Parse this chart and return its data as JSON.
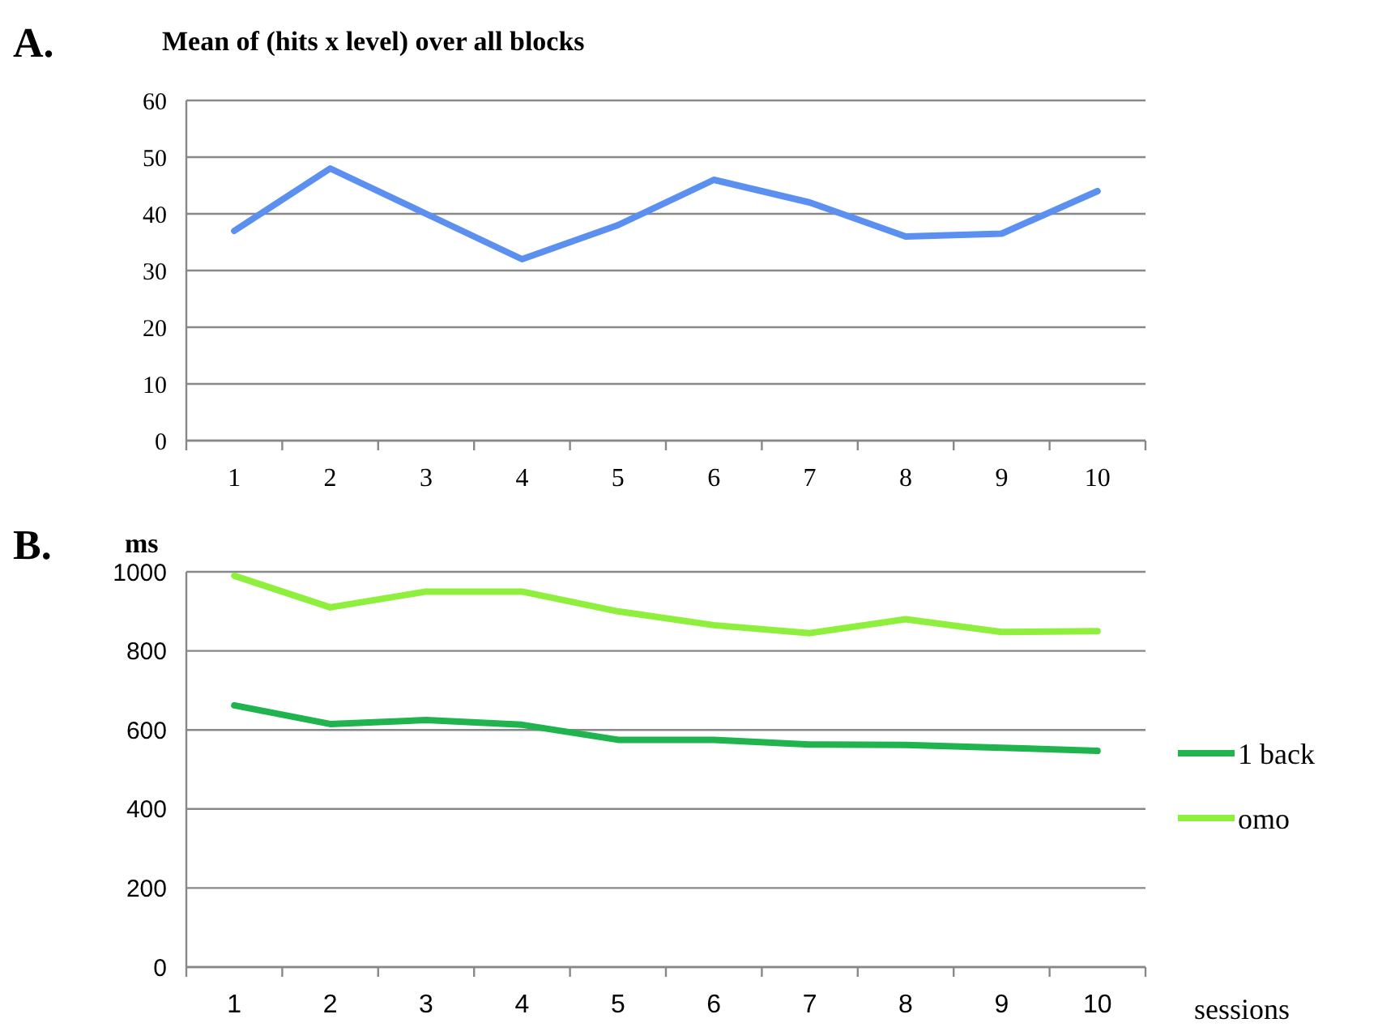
{
  "chart_data": [
    {
      "type": "line",
      "title": "Mean of (hits x level) over all blocks",
      "annotations": [
        "A."
      ],
      "categories": [
        "1",
        "2",
        "3",
        "4",
        "5",
        "6",
        "7",
        "8",
        "9",
        "10"
      ],
      "series": [
        {
          "color": "#5b8ff0",
          "values": [
            37,
            48,
            40,
            32,
            38,
            46,
            42,
            36,
            36.5,
            44
          ]
        }
      ],
      "ylim": [
        0,
        60
      ],
      "yticks": [
        0,
        10,
        20,
        30,
        40,
        50,
        60
      ],
      "grid": "y",
      "legend": false
    },
    {
      "type": "line",
      "annotations": [
        "B."
      ],
      "ylabel": "ms",
      "xlabel": "sessions",
      "categories": [
        "1",
        "2",
        "3",
        "4",
        "5",
        "6",
        "7",
        "8",
        "9",
        "10"
      ],
      "series": [
        {
          "name": "1 back",
          "color": "#1fb44e",
          "values": [
            662,
            615,
            625,
            613,
            575,
            575,
            563,
            562,
            555,
            547
          ]
        },
        {
          "name": "omo",
          "color": "#8ef03c",
          "values": [
            990,
            910,
            950,
            950,
            900,
            865,
            845,
            880,
            848,
            850
          ]
        }
      ],
      "ylim": [
        0,
        1000
      ],
      "yticks": [
        0,
        200,
        400,
        600,
        800,
        1000
      ],
      "grid": "y",
      "legend": "right"
    }
  ]
}
